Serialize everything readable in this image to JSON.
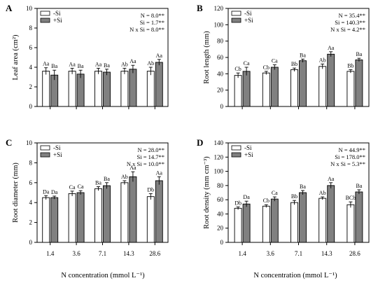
{
  "chart_data": [
    {
      "type": "bar",
      "panel": "A",
      "ylabel": "Leaf area (cm²)",
      "xlabel": "",
      "categories": [
        "1.4",
        "3.6",
        "7.1",
        "14.3",
        "28.6"
      ],
      "ylim": [
        0,
        10
      ],
      "yticks": [
        0,
        2,
        4,
        6,
        8,
        10
      ],
      "show_xticklabels": false,
      "legend": [
        "-Si",
        "+Si"
      ],
      "legend_position": "top-left",
      "stats": [
        "N = 8.0**",
        "Si = 1.7**",
        "N x Si = 8.0**"
      ],
      "series": [
        {
          "name": "-Si",
          "color": "#ffffff",
          "values": [
            3.6,
            3.6,
            3.6,
            3.6,
            3.6
          ],
          "errors": [
            0.35,
            0.3,
            0.3,
            0.3,
            0.4
          ],
          "labels": [
            "Aa",
            "Aa",
            "Aa",
            "Ab",
            "Ab"
          ]
        },
        {
          "name": "+Si",
          "color": "#808080",
          "values": [
            3.2,
            3.3,
            3.5,
            3.8,
            4.5
          ],
          "errors": [
            0.5,
            0.4,
            0.3,
            0.4,
            0.3
          ],
          "labels": [
            "Ba",
            "Ba",
            "Ba",
            "Aa",
            "Aa"
          ]
        }
      ]
    },
    {
      "type": "bar",
      "panel": "B",
      "ylabel": "Root length (mm)",
      "xlabel": "",
      "categories": [
        "1.4",
        "3.6",
        "7.1",
        "14.3",
        "28.6"
      ],
      "ylim": [
        0,
        120
      ],
      "yticks": [
        0,
        20,
        40,
        60,
        80,
        100,
        120
      ],
      "show_xticklabels": false,
      "legend": [
        "-Si",
        "+Si"
      ],
      "legend_position": "top-left",
      "stats": [
        "N =  35.4**",
        "Si = 140.3**",
        "N x Si =   4.2**"
      ],
      "series": [
        {
          "name": "-Si",
          "color": "#ffffff",
          "values": [
            38,
            41,
            45,
            49,
            43
          ],
          "errors": [
            3,
            2,
            2,
            3,
            2
          ],
          "labels": [
            "Cb",
            "Cb",
            "Bb",
            "Ab",
            "Bb"
          ]
        },
        {
          "name": "+Si",
          "color": "#808080",
          "values": [
            43,
            48,
            56,
            64,
            57
          ],
          "errors": [
            5,
            3,
            2,
            3,
            2
          ],
          "labels": [
            "Ca",
            "Ca",
            "Ba",
            "Aa",
            "Ba"
          ]
        }
      ]
    },
    {
      "type": "bar",
      "panel": "C",
      "ylabel": "Root diameter (mm)",
      "xlabel": "",
      "categories": [
        "1.4",
        "3.6",
        "7.1",
        "14.3",
        "28.6"
      ],
      "ylim": [
        0,
        10
      ],
      "yticks": [
        0,
        2,
        4,
        6,
        8,
        10
      ],
      "show_xticklabels": true,
      "legend": [
        "-Si",
        "+Si"
      ],
      "legend_position": "top-left",
      "stats": [
        "N = 28.0**",
        "Si = 14.7**",
        "N x Si = 10.0**"
      ],
      "series": [
        {
          "name": "-Si",
          "color": "#ffffff",
          "values": [
            4.5,
            4.9,
            5.4,
            6.0,
            4.6
          ],
          "errors": [
            0.2,
            0.25,
            0.2,
            0.2,
            0.3
          ],
          "labels": [
            "Da",
            "Ca",
            "Ba",
            "Ab",
            "Db"
          ]
        },
        {
          "name": "+Si",
          "color": "#808080",
          "values": [
            4.5,
            5.0,
            5.7,
            6.6,
            6.2
          ],
          "errors": [
            0.15,
            0.2,
            0.3,
            0.5,
            0.4
          ],
          "labels": [
            "Da",
            "Ca",
            "Ba",
            "Aa",
            "Aa"
          ]
        }
      ]
    },
    {
      "type": "bar",
      "panel": "D",
      "ylabel": "Root density (mm cm⁻³)",
      "xlabel": "",
      "categories": [
        "1.4",
        "3.6",
        "7.1",
        "14.3",
        "28.6"
      ],
      "ylim": [
        0,
        140
      ],
      "yticks": [
        0,
        20,
        40,
        60,
        80,
        100,
        120,
        140
      ],
      "show_xticklabels": true,
      "legend": [
        "-Si",
        "+Si"
      ],
      "legend_position": "top-left",
      "stats": [
        "N =  44.9**",
        "Si = 178.0**",
        "N x Si =   5.3**"
      ],
      "series": [
        {
          "name": "-Si",
          "color": "#ffffff",
          "values": [
            48,
            51,
            56,
            62,
            53
          ],
          "errors": [
            2,
            2,
            3,
            2,
            4
          ],
          "labels": [
            "Db",
            "Cb",
            "Bb",
            "Ab",
            "BCb"
          ]
        },
        {
          "name": "+Si",
          "color": "#808080",
          "values": [
            54,
            61,
            70,
            80,
            71
          ],
          "errors": [
            4,
            3,
            3,
            4,
            3
          ],
          "labels": [
            "Da",
            "Ca",
            "Ba",
            "Aa",
            "Ba"
          ]
        }
      ]
    }
  ],
  "figure": {
    "shared_xlabel": "N concentration (mmol L⁻¹)"
  }
}
